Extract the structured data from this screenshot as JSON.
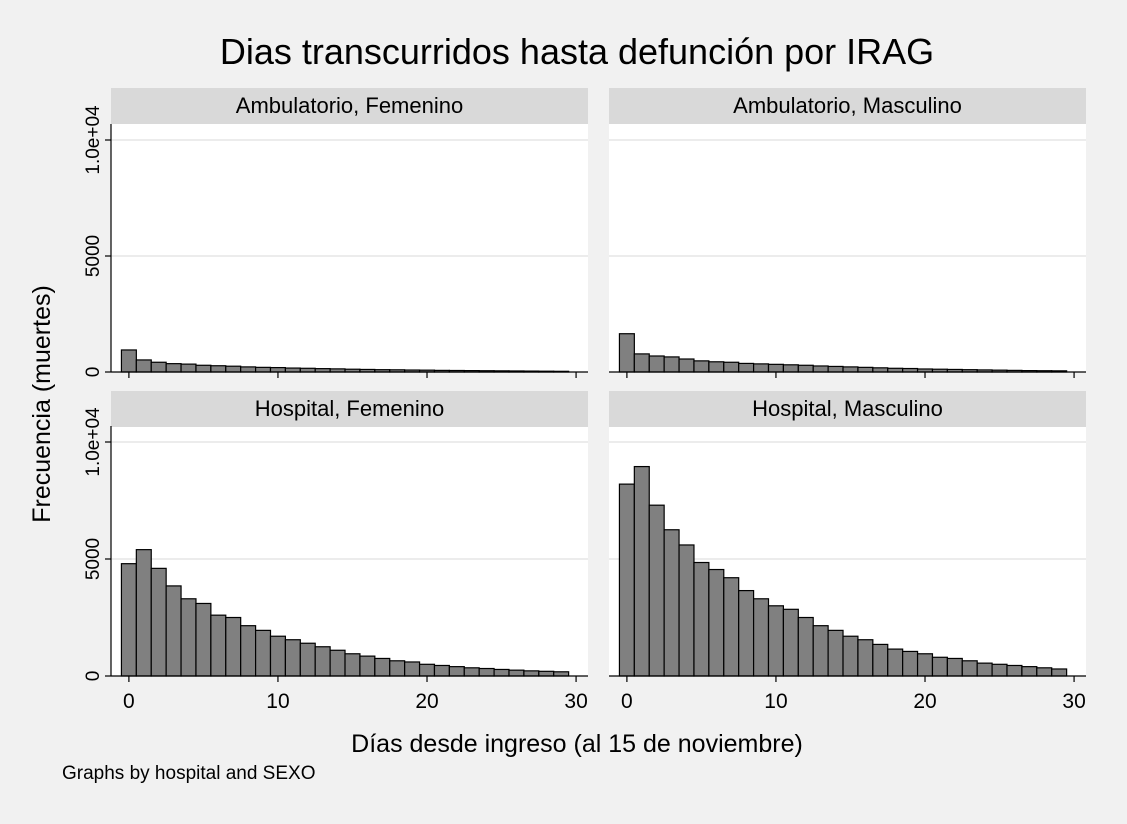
{
  "chart_data": {
    "type": "bar",
    "title": "Dias transcurridos hasta defunción por IRAG",
    "xlabel": "Días desde ingreso (al 15 de noviembre)",
    "ylabel": "Frecuencia (muertes)",
    "note": "Graphs by hospital and SEXO",
    "xlim": [
      -1.2,
      30.8
    ],
    "ylim": [
      0,
      10500
    ],
    "x_ticks": [
      0,
      10,
      20,
      30
    ],
    "y_ticks": [
      0,
      5000,
      10000
    ],
    "y_tick_labels": [
      "0",
      "5000",
      "1.0e+04"
    ],
    "grid": true,
    "bar_color": "#808080",
    "bar_edge_color": "#000000",
    "panels": [
      {
        "label": "Ambulatorio, Femenino",
        "x": [
          0,
          1,
          2,
          3,
          4,
          5,
          6,
          7,
          8,
          9,
          10,
          11,
          12,
          13,
          14,
          15,
          16,
          17,
          18,
          19,
          20,
          21,
          22,
          23,
          24,
          25,
          26,
          27,
          28,
          29
        ],
        "values": [
          950,
          520,
          420,
          360,
          340,
          290,
          270,
          250,
          220,
          200,
          190,
          170,
          160,
          145,
          135,
          120,
          110,
          100,
          95,
          85,
          80,
          70,
          65,
          60,
          55,
          50,
          45,
          40,
          35,
          30
        ]
      },
      {
        "label": "Ambulatorio, Masculino",
        "x": [
          0,
          1,
          2,
          3,
          4,
          5,
          6,
          7,
          8,
          9,
          10,
          11,
          12,
          13,
          14,
          15,
          16,
          17,
          18,
          19,
          20,
          21,
          22,
          23,
          24,
          25,
          26,
          27,
          28,
          29
        ],
        "values": [
          1650,
          780,
          690,
          650,
          560,
          480,
          440,
          420,
          370,
          350,
          330,
          310,
          290,
          260,
          240,
          220,
          200,
          180,
          160,
          150,
          130,
          120,
          110,
          100,
          90,
          80,
          70,
          60,
          55,
          50
        ]
      },
      {
        "label": "Hospital, Femenino",
        "x": [
          0,
          1,
          2,
          3,
          4,
          5,
          6,
          7,
          8,
          9,
          10,
          11,
          12,
          13,
          14,
          15,
          16,
          17,
          18,
          19,
          20,
          21,
          22,
          23,
          24,
          25,
          26,
          27,
          28,
          29
        ],
        "values": [
          4800,
          5400,
          4600,
          3850,
          3300,
          3100,
          2600,
          2500,
          2150,
          1950,
          1700,
          1550,
          1400,
          1250,
          1100,
          950,
          850,
          750,
          650,
          600,
          500,
          450,
          400,
          350,
          320,
          280,
          250,
          220,
          200,
          180
        ]
      },
      {
        "label": "Hospital, Masculino",
        "x": [
          0,
          1,
          2,
          3,
          4,
          5,
          6,
          7,
          8,
          9,
          10,
          11,
          12,
          13,
          14,
          15,
          16,
          17,
          18,
          19,
          20,
          21,
          22,
          23,
          24,
          25,
          26,
          27,
          28,
          29
        ],
        "values": [
          8200,
          8950,
          7300,
          6250,
          5600,
          4850,
          4550,
          4200,
          3650,
          3300,
          3000,
          2850,
          2500,
          2150,
          1950,
          1700,
          1550,
          1350,
          1150,
          1050,
          950,
          800,
          750,
          650,
          550,
          500,
          450,
          400,
          350,
          300
        ]
      }
    ]
  }
}
